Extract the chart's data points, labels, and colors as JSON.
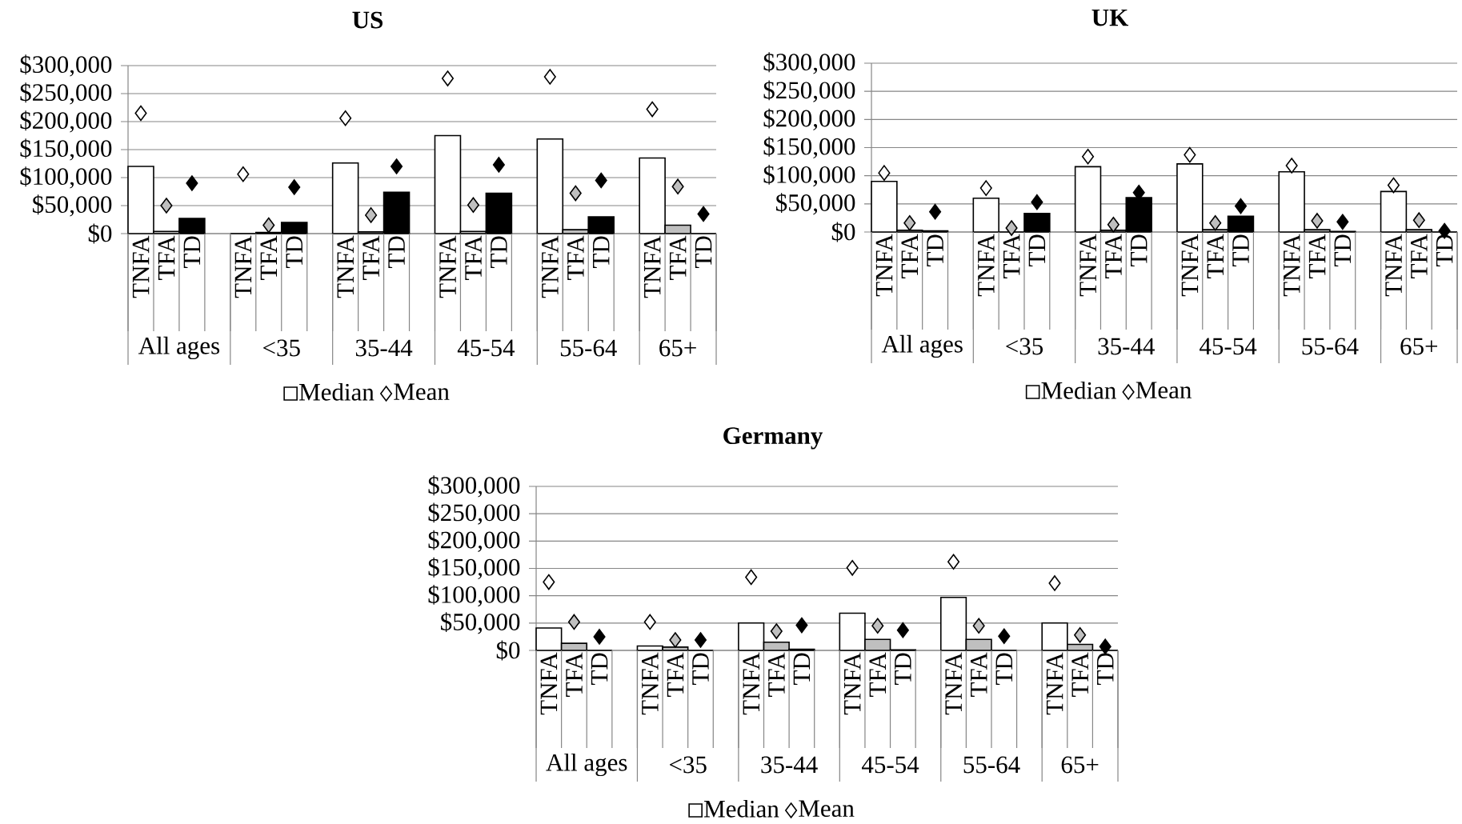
{
  "chart_data": [
    {
      "type": "bar",
      "title": "US",
      "categories": [
        "TNFA",
        "TFA",
        "TD",
        null,
        "TNFA",
        "TFA",
        "TD",
        null,
        "TNFA",
        "TFA",
        "TD",
        null,
        "TNFA",
        "TFA",
        "TD",
        null,
        "TNFA",
        "TFA",
        "TD",
        null,
        "TNFA",
        "TFA",
        "TD"
      ],
      "annotations": [
        "All ages",
        "<35",
        "35-44",
        "45-54",
        "55-64",
        "65+"
      ],
      "ylim": [
        0,
        300000
      ],
      "yticks": [
        {
          "value": 0,
          "label": "$0"
        },
        {
          "value": 50000,
          "label": "$50,000"
        },
        {
          "value": 100000,
          "label": "$100,000"
        },
        {
          "value": 150000,
          "label": "$150,000"
        },
        {
          "value": 200000,
          "label": "$200,000"
        },
        {
          "value": 250000,
          "label": "$250,000"
        },
        {
          "value": 300000,
          "label": "$300,000"
        }
      ],
      "grid": "y",
      "legend": "bottom",
      "series": [
        {
          "name": "Median",
          "type": "bar",
          "color": "#ffffff",
          "colors": [
            "#ffffff",
            "#bfbfbf",
            "#000000",
            null,
            "#ffffff",
            "#bfbfbf",
            "#000000",
            null,
            "#ffffff",
            "#bfbfbf",
            "#000000",
            null,
            "#ffffff",
            "#bfbfbf",
            "#000000",
            null,
            "#ffffff",
            "#bfbfbf",
            "#000000",
            null,
            "#ffffff",
            "#bfbfbf",
            "#000000"
          ],
          "values": [
            120000,
            4000,
            27000,
            null,
            0,
            2000,
            20000,
            null,
            126000,
            3000,
            74000,
            null,
            175000,
            4000,
            72000,
            null,
            169000,
            7000,
            30000,
            null,
            135000,
            15000,
            0
          ]
        },
        {
          "name": "Mean",
          "type": "scatter",
          "marker": "diamond",
          "color": "#ffffff",
          "colors": [
            "#ffffff",
            "#bfbfbf",
            "#000000",
            null,
            "#ffffff",
            "#bfbfbf",
            "#000000",
            null,
            "#ffffff",
            "#bfbfbf",
            "#000000",
            null,
            "#ffffff",
            "#bfbfbf",
            "#000000",
            null,
            "#ffffff",
            "#bfbfbf",
            "#000000",
            null,
            "#ffffff",
            "#bfbfbf",
            "#000000"
          ],
          "values": [
            215000,
            50000,
            90000,
            null,
            106000,
            15000,
            83000,
            null,
            206000,
            33000,
            120000,
            null,
            277000,
            51000,
            123000,
            null,
            280000,
            72000,
            95000,
            null,
            222000,
            84000,
            35000
          ]
        }
      ]
    },
    {
      "type": "bar",
      "title": "UK",
      "categories": [
        "TNFA",
        "TFA",
        "TD",
        null,
        "TNFA",
        "TFA",
        "TD",
        null,
        "TNFA",
        "TFA",
        "TD",
        null,
        "TNFA",
        "TFA",
        "TD",
        null,
        "TNFA",
        "TFA",
        "TD",
        null,
        "TNFA",
        "TFA",
        "TD"
      ],
      "annotations": [
        "All ages",
        "<35",
        "35-44",
        "45-54",
        "55-64",
        "65+"
      ],
      "ylim": [
        0,
        300000
      ],
      "yticks": [
        {
          "value": 0,
          "label": "$0"
        },
        {
          "value": 50000,
          "label": "$50,000"
        },
        {
          "value": 100000,
          "label": "$100,000"
        },
        {
          "value": 150000,
          "label": "$150,000"
        },
        {
          "value": 200000,
          "label": "$200,000"
        },
        {
          "value": 250000,
          "label": "$250,000"
        },
        {
          "value": 300000,
          "label": "$300,000"
        }
      ],
      "grid": "y",
      "legend": "bottom",
      "series": [
        {
          "name": "Median",
          "type": "bar",
          "color": "#ffffff",
          "colors": [
            "#ffffff",
            "#bfbfbf",
            "#000000",
            null,
            "#ffffff",
            "#bfbfbf",
            "#000000",
            null,
            "#ffffff",
            "#bfbfbf",
            "#000000",
            null,
            "#ffffff",
            "#bfbfbf",
            "#000000",
            null,
            "#ffffff",
            "#bfbfbf",
            "#000000",
            null,
            "#ffffff",
            "#bfbfbf",
            "#000000"
          ],
          "values": [
            90000,
            3000,
            2000,
            null,
            60000,
            0,
            33000,
            null,
            116000,
            3000,
            61000,
            null,
            121000,
            4000,
            28000,
            null,
            107000,
            4000,
            1000,
            null,
            72000,
            4000,
            0
          ]
        },
        {
          "name": "Mean",
          "type": "scatter",
          "marker": "diamond",
          "color": "#ffffff",
          "colors": [
            "#ffffff",
            "#bfbfbf",
            "#000000",
            null,
            "#ffffff",
            "#bfbfbf",
            "#000000",
            null,
            "#ffffff",
            "#bfbfbf",
            "#000000",
            null,
            "#ffffff",
            "#bfbfbf",
            "#000000",
            null,
            "#ffffff",
            "#bfbfbf",
            "#000000",
            null,
            "#ffffff",
            "#bfbfbf",
            "#000000"
          ],
          "values": [
            105000,
            16000,
            36000,
            null,
            78000,
            7000,
            53000,
            null,
            134000,
            13000,
            70000,
            null,
            137000,
            16000,
            46000,
            null,
            118000,
            20000,
            18000,
            null,
            83000,
            21000,
            2000
          ]
        }
      ]
    },
    {
      "type": "bar",
      "title": "Germany",
      "categories": [
        "TNFA",
        "TFA",
        "TD",
        null,
        "TNFA",
        "TFA",
        "TD",
        null,
        "TNFA",
        "TFA",
        "TD",
        null,
        "TNFA",
        "TFA",
        "TD",
        null,
        "TNFA",
        "TFA",
        "TD",
        null,
        "TNFA",
        "TFA",
        "TD"
      ],
      "annotations": [
        "All ages",
        "<35",
        "35-44",
        "45-54",
        "55-64",
        "65+"
      ],
      "ylim": [
        0,
        300000
      ],
      "yticks": [
        {
          "value": 0,
          "label": "$0"
        },
        {
          "value": 50000,
          "label": "$50,000"
        },
        {
          "value": 100000,
          "label": "$100,000"
        },
        {
          "value": 150000,
          "label": "$150,000"
        },
        {
          "value": 200000,
          "label": "$200,000"
        },
        {
          "value": 250000,
          "label": "$250,000"
        },
        {
          "value": 300000,
          "label": "$300,000"
        }
      ],
      "grid": "y",
      "legend": "bottom",
      "series": [
        {
          "name": "Median",
          "type": "bar",
          "color": "#ffffff",
          "colors": [
            "#ffffff",
            "#bfbfbf",
            "#000000",
            null,
            "#ffffff",
            "#bfbfbf",
            "#000000",
            null,
            "#ffffff",
            "#bfbfbf",
            "#000000",
            null,
            "#ffffff",
            "#bfbfbf",
            "#000000",
            null,
            "#ffffff",
            "#bfbfbf",
            "#000000",
            null,
            "#ffffff",
            "#bfbfbf",
            "#000000"
          ],
          "values": [
            41000,
            13000,
            0,
            null,
            8000,
            6000,
            0,
            null,
            50000,
            15000,
            2000,
            null,
            68000,
            20000,
            1000,
            null,
            97000,
            20000,
            0,
            null,
            50000,
            11000,
            0
          ]
        },
        {
          "name": "Mean",
          "type": "scatter",
          "marker": "diamond",
          "color": "#ffffff",
          "colors": [
            "#ffffff",
            "#bfbfbf",
            "#000000",
            null,
            "#ffffff",
            "#bfbfbf",
            "#000000",
            null,
            "#ffffff",
            "#bfbfbf",
            "#000000",
            null,
            "#ffffff",
            "#bfbfbf",
            "#000000",
            null,
            "#ffffff",
            "#bfbfbf",
            "#000000",
            null,
            "#ffffff",
            "#bfbfbf",
            "#000000"
          ],
          "values": [
            125000,
            52000,
            25000,
            null,
            52000,
            19000,
            19000,
            null,
            134000,
            35000,
            46000,
            null,
            151000,
            45000,
            37000,
            null,
            162000,
            45000,
            26000,
            null,
            123000,
            28000,
            7000
          ]
        }
      ]
    }
  ]
}
